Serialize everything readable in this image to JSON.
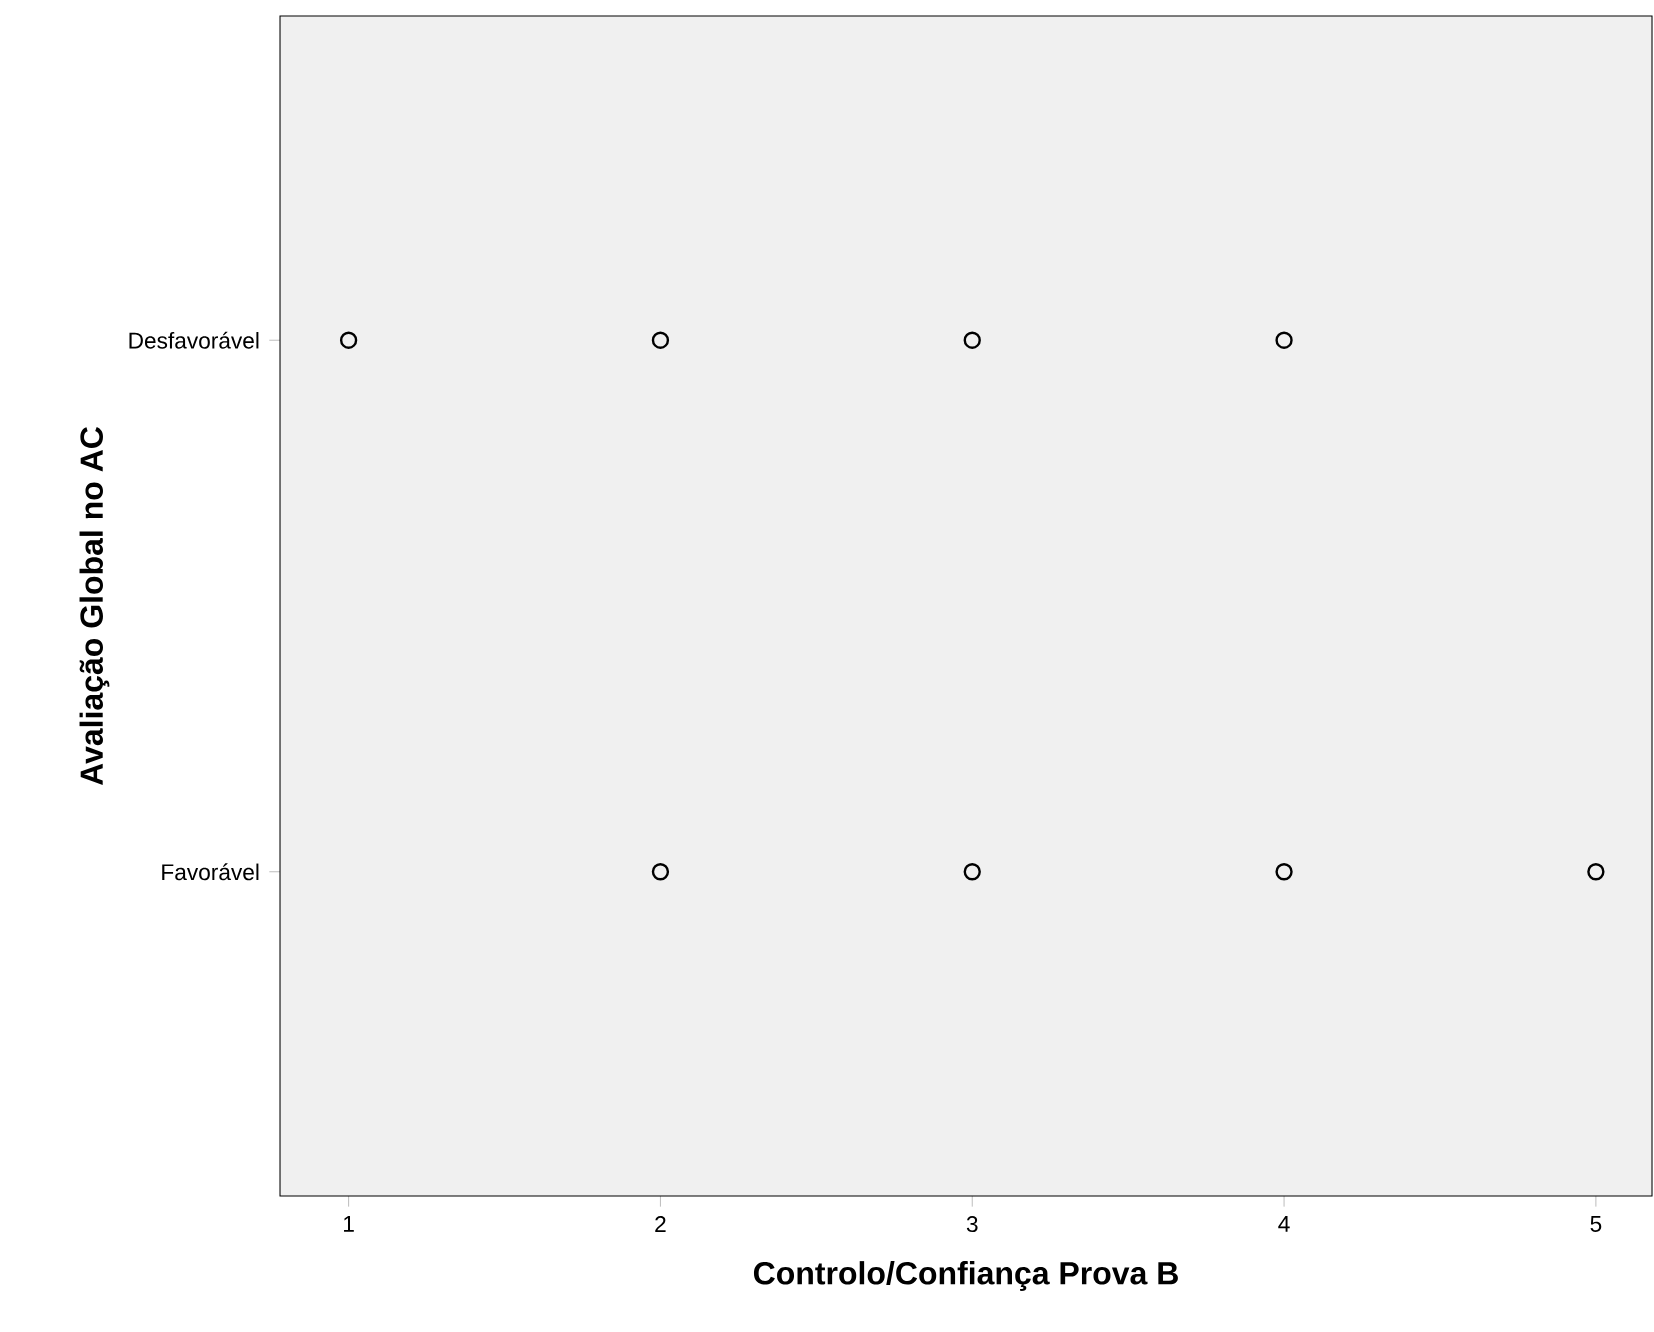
{
  "chart_data": {
    "type": "scatter",
    "orientation": "horizontal",
    "xlabel": "Controlo/Confiança Prova B",
    "ylabel": "Avaliação Global no AC",
    "categories": [
      "Desfavorável",
      "Favorável"
    ],
    "series": [
      {
        "color": "#000000",
        "values": [
          1,
          2
        ]
      },
      {
        "color": "#000000",
        "values": [
          2,
          3
        ]
      },
      {
        "color": "#000000",
        "values": [
          3,
          4
        ]
      },
      {
        "color": "#000000",
        "values": [
          4,
          5
        ]
      }
    ],
    "marker": "circle",
    "xlim": [
      0.78,
      5.18
    ],
    "xticks": [
      1,
      2,
      3,
      4,
      5
    ]
  }
}
